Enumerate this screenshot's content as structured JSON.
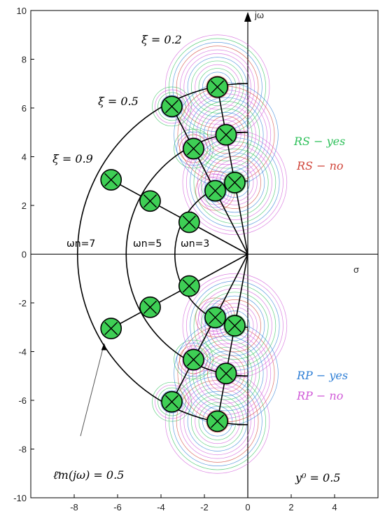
{
  "chart_data": {
    "type": "scatter",
    "xlim": [
      -10,
      6
    ],
    "ylim": [
      -10,
      10
    ],
    "x_ticks": [
      "-8",
      "-6",
      "-4",
      "-2",
      "0",
      "2",
      "4"
    ],
    "y_ticks": [
      "10",
      "8",
      "6",
      "4",
      "2",
      "0",
      "-2",
      "-4",
      "-6",
      "-8",
      "-10"
    ],
    "xlabel": "σ",
    "ylabel": "jω",
    "grid": false,
    "arcs": [
      {
        "label": "ωn=7",
        "omega": 7
      },
      {
        "label": "ωn=5",
        "omega": 5
      },
      {
        "label": "ωn=3",
        "omega": 3
      }
    ],
    "damping_lines": [
      {
        "label": "ξ = 0.2",
        "xi": 0.2
      },
      {
        "label": "ξ = 0.5",
        "xi": 0.5
      },
      {
        "label": "ξ = 0.9",
        "xi": 0.9
      }
    ],
    "poles": [
      {
        "omega": 7,
        "xi": 0.9,
        "x": -6.3,
        "y": 3.05
      },
      {
        "omega": 7,
        "xi": 0.5,
        "x": -3.5,
        "y": 6.06
      },
      {
        "omega": 7,
        "xi": 0.2,
        "x": -1.4,
        "y": 6.86
      },
      {
        "omega": 5,
        "xi": 0.9,
        "x": -4.5,
        "y": 2.18
      },
      {
        "omega": 5,
        "xi": 0.5,
        "x": -2.5,
        "y": 4.33
      },
      {
        "omega": 5,
        "xi": 0.2,
        "x": -1.0,
        "y": 4.9
      },
      {
        "omega": 3,
        "xi": 0.9,
        "x": -2.7,
        "y": 1.31
      },
      {
        "omega": 3,
        "xi": 0.5,
        "x": -1.5,
        "y": 2.6
      },
      {
        "omega": 3,
        "xi": 0.2,
        "x": -0.6,
        "y": 2.94
      }
    ],
    "annotations": {
      "rs_yes": "RS − yes",
      "rs_no": "RS − no",
      "rp_yes": "RP − yes",
      "rp_no": "RP − no",
      "lm": "ℓ̄m(jω) = 0.5",
      "y0": "y⁰ = 0.5"
    },
    "colors": {
      "pole_fill": "#3ecf55",
      "rs_yes": "#2ec05a",
      "rs_no": "#d0453a",
      "rp_yes": "#2f7fd6",
      "rp_no": "#d05ad8"
    }
  }
}
